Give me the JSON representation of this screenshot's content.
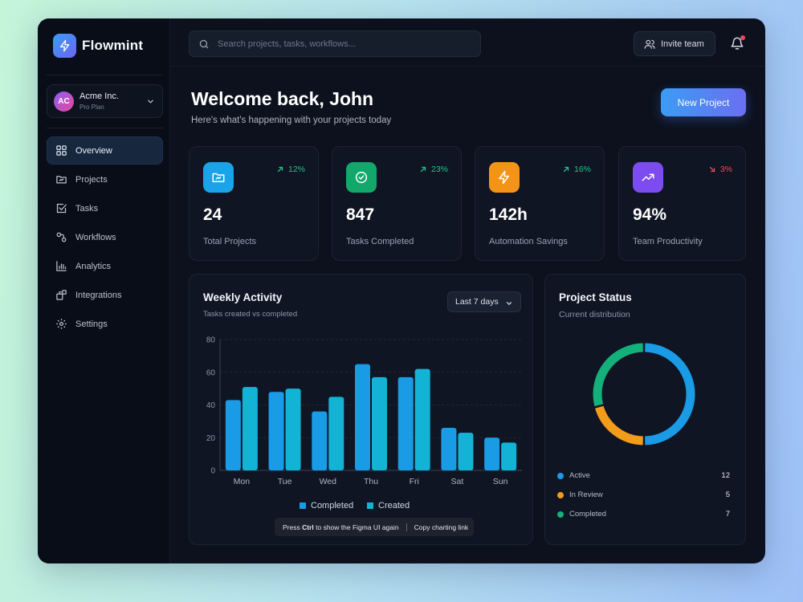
{
  "brand": {
    "name": "Flowmint"
  },
  "org": {
    "initials": "AC",
    "name": "Acme Inc.",
    "plan": "Pro Plan"
  },
  "nav": [
    {
      "label": "Overview",
      "icon": "grid-icon",
      "active": true
    },
    {
      "label": "Projects",
      "icon": "folder-icon"
    },
    {
      "label": "Tasks",
      "icon": "checkbox-icon"
    },
    {
      "label": "Workflows",
      "icon": "workflow-icon"
    },
    {
      "label": "Analytics",
      "icon": "bar-chart-icon"
    },
    {
      "label": "Integrations",
      "icon": "puzzle-icon"
    },
    {
      "label": "Settings",
      "icon": "gear-icon"
    }
  ],
  "search": {
    "placeholder": "Search projects, tasks, workflows..."
  },
  "header": {
    "invite_label": "Invite team"
  },
  "welcome": {
    "title": "Welcome back, John",
    "subtitle": "Here's what's happening with your projects today",
    "new_project_label": "New Project"
  },
  "stats": [
    {
      "value": "24",
      "label": "Total Projects",
      "trend": "12%",
      "direction": "up",
      "icon": "folder-icon",
      "color": "#1aa3e8"
    },
    {
      "value": "847",
      "label": "Tasks Completed",
      "trend": "23%",
      "direction": "up",
      "icon": "check-circle-icon",
      "color": "#13a86b"
    },
    {
      "value": "142h",
      "label": "Automation Savings",
      "trend": "16%",
      "direction": "up",
      "icon": "lightning-icon",
      "color": "#f39419"
    },
    {
      "value": "94%",
      "label": "Team Productivity",
      "trend": "3%",
      "direction": "down",
      "icon": "trend-up-icon",
      "color": "#7d4cf0"
    }
  ],
  "colors": {
    "trend_up": "#22c48a",
    "trend_down": "#ef4a5a"
  },
  "weekly": {
    "title": "Weekly Activity",
    "subtitle": "Tasks created vs completed",
    "range": "Last 7 days"
  },
  "chart_data": {
    "type": "bar",
    "categories": [
      "Mon",
      "Tue",
      "Wed",
      "Thu",
      "Fri",
      "Sat",
      "Sun"
    ],
    "series": [
      {
        "name": "Completed",
        "color": "#1a9be6",
        "values": [
          43,
          48,
          36,
          65,
          57,
          26,
          20
        ]
      },
      {
        "name": "Created",
        "color": "#13b3d6",
        "values": [
          51,
          50,
          45,
          57,
          62,
          23,
          17
        ]
      }
    ],
    "yticks": [
      0,
      20,
      40,
      60,
      80
    ],
    "ylim": [
      0,
      80
    ],
    "grid": true,
    "legend": "bottom"
  },
  "toast": {
    "prefix": "Press",
    "key": "Ctrl",
    "suffix": "to show the Figma UI again",
    "link": "Copy charting link"
  },
  "project_status": {
    "title": "Project Status",
    "subtitle": "Current distribution",
    "chart_data": {
      "type": "pie",
      "items": [
        {
          "label": "Active",
          "value": 12,
          "color": "#1a9be6"
        },
        {
          "label": "In Review",
          "value": 5,
          "color": "#f39b1b"
        },
        {
          "label": "Completed",
          "value": 7,
          "color": "#14b07a"
        }
      ]
    }
  }
}
